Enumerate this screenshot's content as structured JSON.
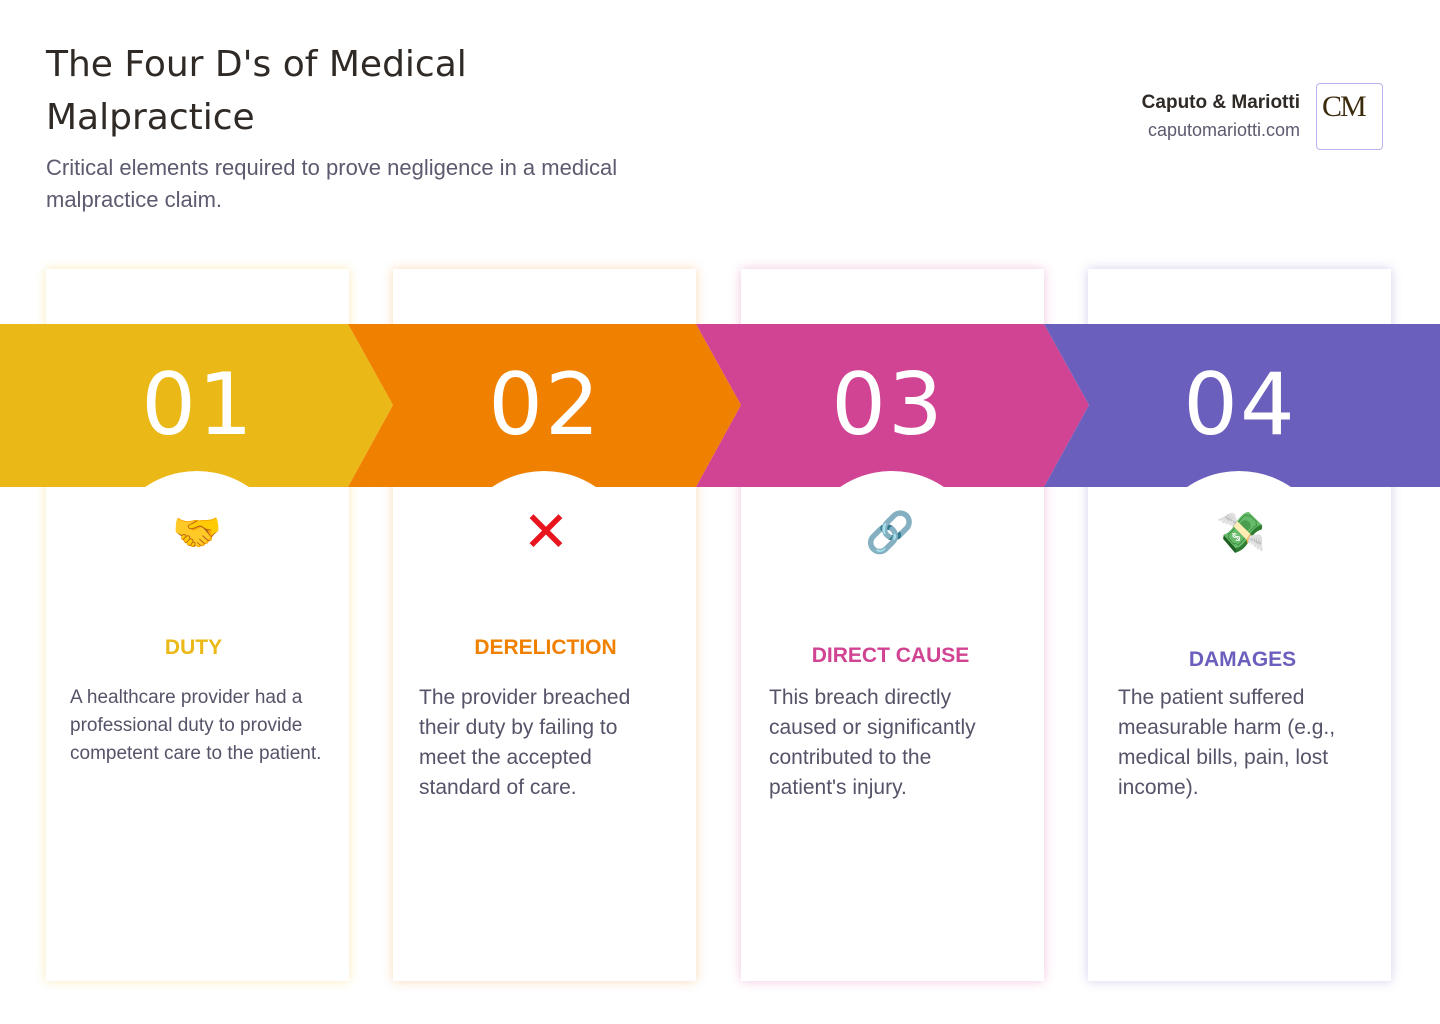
{
  "header": {
    "title": "The Four D's of Medical Malpractice",
    "subtitle": "Critical elements required to prove negligence in a medical malpractice claim."
  },
  "brand": {
    "name": "Caputo & Mariotti",
    "url": "caputomariotti.com",
    "logo_text": "CM"
  },
  "steps": [
    {
      "number": "01",
      "icon": "handshake-icon",
      "glyph": "🤝",
      "title": "DUTY",
      "body": "A healthcare provider had a professional duty to provide competent care to the patient.",
      "color": "#EBB917"
    },
    {
      "number": "02",
      "icon": "cross-mark-icon",
      "glyph": "✕",
      "title": "DERELICTION",
      "body": "The provider breached their duty by failing to meet the accepted standard of care.",
      "color": "#F08000"
    },
    {
      "number": "03",
      "icon": "link-icon",
      "glyph": "🔗",
      "title": "DIRECT CAUSE",
      "body": "This breach directly caused or significantly contributed to the patient's injury.",
      "color": "#D14393"
    },
    {
      "number": "04",
      "icon": "money-with-wings-icon",
      "glyph": "💸",
      "title": "DAMAGES",
      "body": "The patient suffered measurable harm (e.g., medical bills, pain, lost income).",
      "color": "#6B5FBD"
    }
  ]
}
